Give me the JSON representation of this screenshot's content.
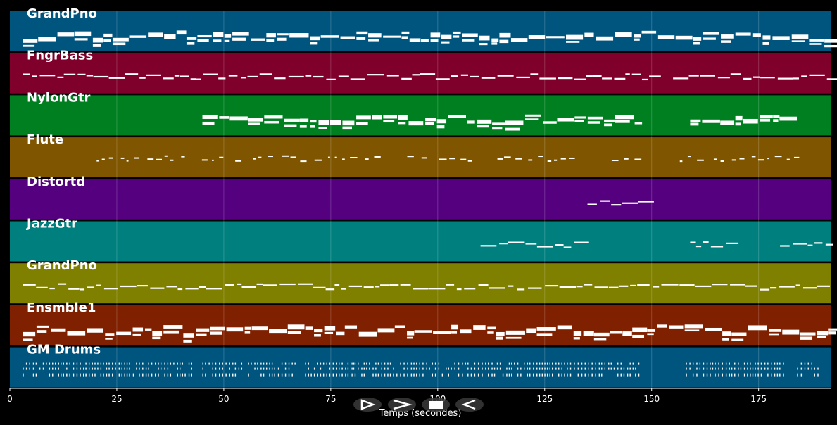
{
  "chart_data": {
    "type": "piano-roll",
    "xlabel": "Temps (secondes)",
    "xlim": [
      0,
      192
    ],
    "xticks": [
      0,
      25,
      50,
      75,
      100,
      125,
      150,
      175
    ],
    "grid": true,
    "tracks": [
      {
        "name": "GrandPno",
        "color": "#00557f",
        "density": "dense",
        "pattern": "block",
        "segments": [
          [
            3,
            192
          ]
        ]
      },
      {
        "name": "FngrBass",
        "color": "#7f002b",
        "density": "sparse",
        "pattern": "line",
        "segments": [
          [
            3,
            150
          ],
          [
            155,
            192
          ]
        ]
      },
      {
        "name": "NylonGtr",
        "color": "#007f20",
        "density": "dense",
        "pattern": "block",
        "segments": [
          [
            45,
            147
          ],
          [
            159,
            184
          ]
        ]
      },
      {
        "name": "Flute",
        "color": "#7f5500",
        "density": "sparse",
        "pattern": "scatter",
        "segments": [
          [
            15,
            147
          ],
          [
            146,
            185
          ]
        ]
      },
      {
        "name": "Distortd",
        "color": "#55007f",
        "density": "sparse",
        "pattern": "line",
        "segments": [
          [
            135,
            147
          ]
        ]
      },
      {
        "name": "JazzGtr",
        "color": "#007f7f",
        "density": "sparse",
        "pattern": "line",
        "segments": [
          [
            110,
            134
          ],
          [
            159,
            170
          ],
          [
            180,
            192
          ]
        ]
      },
      {
        "name": "GrandPno",
        "color": "#7f7f00",
        "density": "medium",
        "pattern": "line",
        "segments": [
          [
            3,
            192
          ]
        ]
      },
      {
        "name": "Ensmble1",
        "color": "#7f2000",
        "density": "dense",
        "pattern": "block",
        "segments": [
          [
            3,
            192
          ]
        ]
      },
      {
        "name": "GM Drums",
        "color": "#00557f",
        "density": "dense",
        "pattern": "drums",
        "segments": [
          [
            3,
            43
          ],
          [
            45,
            67
          ],
          [
            69,
            81
          ],
          [
            80,
            147
          ],
          [
            158,
            181
          ],
          [
            184,
            189
          ]
        ]
      }
    ]
  },
  "controls": {
    "play_icon": "play-outline-icon",
    "forward_icon": "chevron-right-icon",
    "stop_icon": "stop-icon",
    "back_icon": "chevron-left-icon"
  }
}
